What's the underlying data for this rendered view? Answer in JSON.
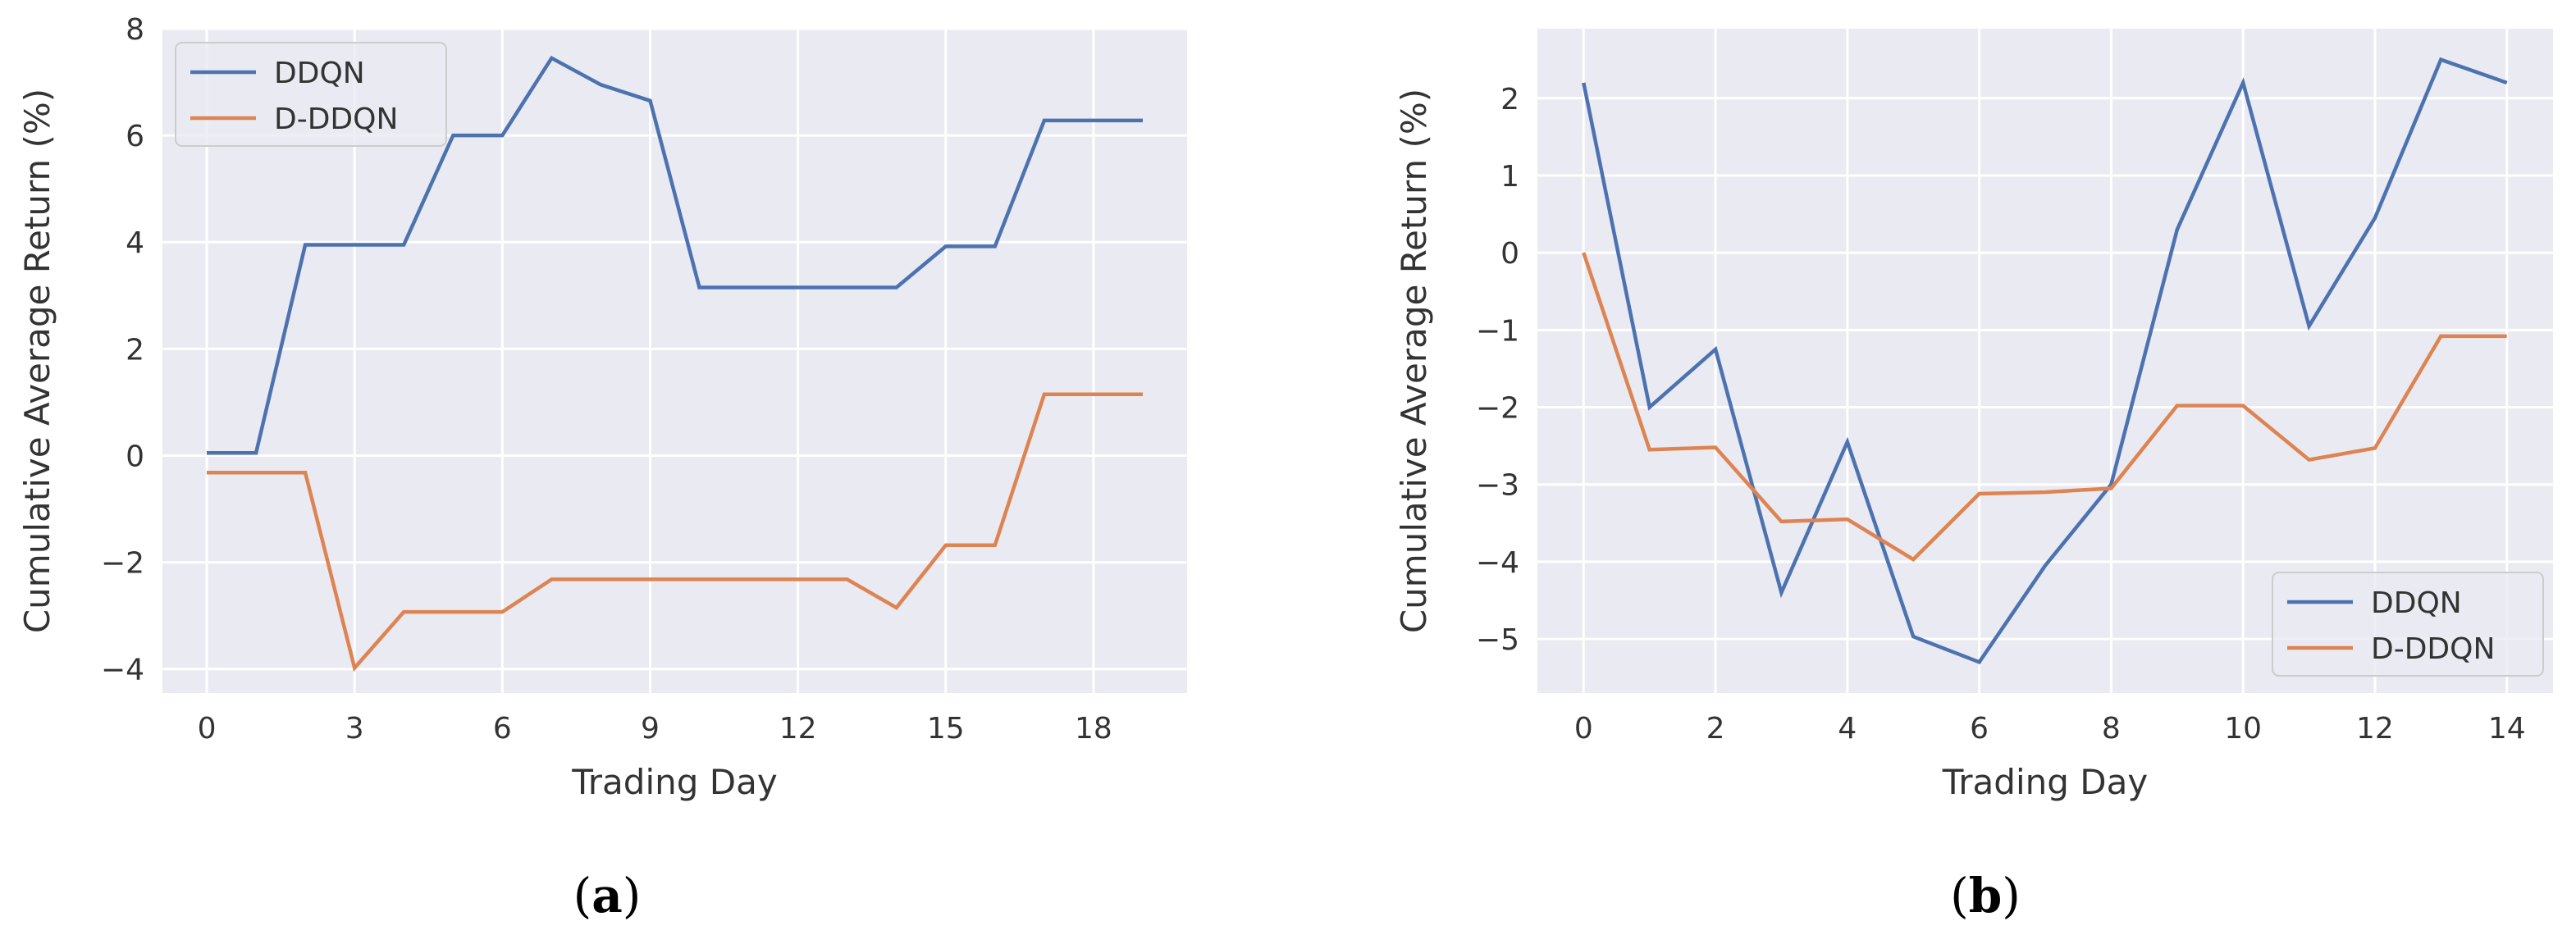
{
  "chart_data": [
    {
      "type": "line",
      "caption_open": "(",
      "caption_letter": "a",
      "caption_close": ")",
      "xlabel": "Trading Day",
      "ylabel": "Cumulative Average Return (%)",
      "xlim": [
        -0.9,
        19.9
      ],
      "ylim": [
        -4.45,
        8.0
      ],
      "xticks": [
        0,
        3,
        6,
        9,
        12,
        15,
        18
      ],
      "yticks": [
        -4,
        -2,
        0,
        2,
        4,
        6,
        8
      ],
      "grid": true,
      "legend_position": "top-left",
      "x": [
        0,
        1,
        2,
        3,
        4,
        5,
        6,
        7,
        8,
        9,
        10,
        11,
        12,
        13,
        14,
        15,
        16,
        17,
        18,
        19
      ],
      "series": [
        {
          "name": "DDQN",
          "color": "#4c72b0",
          "values": [
            0.05,
            0.05,
            3.95,
            3.95,
            3.95,
            6.0,
            6.0,
            7.45,
            6.95,
            6.65,
            3.15,
            3.15,
            3.15,
            3.15,
            3.15,
            3.92,
            3.92,
            6.28,
            6.28,
            6.28
          ]
        },
        {
          "name": "D-DDQN",
          "color": "#dd8452",
          "values": [
            -0.32,
            -0.32,
            -0.32,
            -3.98,
            -2.93,
            -2.93,
            -2.93,
            -2.32,
            -2.32,
            -2.32,
            -2.32,
            -2.32,
            -2.32,
            -2.32,
            -2.85,
            -1.68,
            -1.68,
            1.15,
            1.15,
            1.15
          ]
        }
      ]
    },
    {
      "type": "line",
      "caption_open": "(",
      "caption_letter": "b",
      "caption_close": ")",
      "xlabel": "Trading Day",
      "ylabel": "Cumulative Average Return (%)",
      "xlim": [
        -0.7,
        14.7
      ],
      "ylim": [
        -5.7,
        2.9
      ],
      "xticks": [
        0,
        2,
        4,
        6,
        8,
        10,
        12,
        14
      ],
      "yticks": [
        -5,
        -4,
        -3,
        -2,
        -1,
        0,
        1,
        2
      ],
      "grid": true,
      "legend_position": "bottom-right",
      "x": [
        0,
        1,
        2,
        3,
        4,
        5,
        6,
        7,
        8,
        9,
        10,
        11,
        12,
        13,
        14
      ],
      "series": [
        {
          "name": "DDQN",
          "color": "#4c72b0",
          "values": [
            2.2,
            -2.0,
            -1.25,
            -4.4,
            -2.45,
            -4.97,
            -5.3,
            -4.05,
            -3.0,
            0.3,
            2.2,
            -0.95,
            0.45,
            2.5,
            2.2
          ]
        },
        {
          "name": "D-DDQN",
          "color": "#dd8452",
          "values": [
            0.0,
            -2.55,
            -2.52,
            -3.48,
            -3.45,
            -3.97,
            -3.12,
            -3.1,
            -3.05,
            -1.98,
            -1.98,
            -2.68,
            -2.53,
            -1.08,
            -1.08
          ]
        }
      ]
    }
  ]
}
